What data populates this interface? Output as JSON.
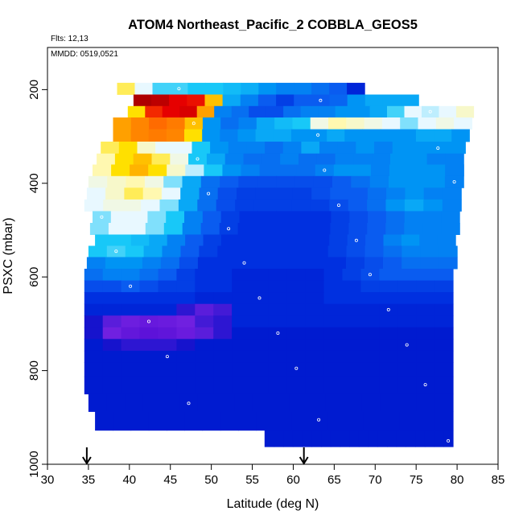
{
  "chart_data": {
    "type": "heatmap",
    "title": "ATOM4 Northeast_Pacific_2 COBBLA_GEOS5",
    "annotations": [
      "Flts: 12,13",
      "MMDD: 0519,0521"
    ],
    "xlabel": "Latitude (deg N)",
    "ylabel": "PSXC (mbar)",
    "xlim": [
      30,
      85
    ],
    "ylim": [
      1000,
      110
    ],
    "x_ticks": [
      "30",
      "35",
      "40",
      "45",
      "50",
      "55",
      "60",
      "65",
      "70",
      "75",
      "80",
      "85"
    ],
    "y_ticks": [
      "200",
      "400",
      "600",
      "800",
      "1000"
    ],
    "markers": [
      {
        "latitude": 34.8,
        "label": "arrow"
      },
      {
        "latitude": 61.3,
        "label": "arrow"
      }
    ],
    "levels": [
      {
        "p": 198,
        "lat": [
          38.5,
          68.7
        ],
        "v": [
          0.5,
          0.3,
          0.22,
          0.22,
          0.2,
          0.2,
          0.18,
          0.16,
          0.12,
          0.1,
          0.1,
          0.08,
          0.06,
          0.02
        ]
      },
      {
        "p": 223,
        "lat": [
          40.5,
          75.3
        ],
        "v": [
          0.98,
          0.96,
          0.9,
          0.88,
          0.6,
          0.15,
          0.1,
          0.06,
          0.04,
          0.06,
          0.06,
          0.07,
          0.12,
          0.15,
          0.15,
          0.15
        ]
      },
      {
        "p": 247,
        "lat": [
          39.8,
          82.0
        ],
        "v": [
          0.55,
          0.85,
          0.9,
          0.92,
          0.65,
          0.1,
          0.08,
          0.05,
          0.05,
          0.08,
          0.1,
          0.1,
          0.12,
          0.12,
          0.15,
          0.22,
          0.3,
          0.28,
          0.3,
          0.4
        ]
      },
      {
        "p": 272,
        "lat": [
          38.0,
          81.8
        ],
        "v": [
          0.65,
          0.7,
          0.75,
          0.72,
          0.6,
          0.12,
          0.08,
          0.1,
          0.15,
          0.18,
          0.2,
          0.35,
          0.45,
          0.4,
          0.35,
          0.3,
          0.25,
          0.3,
          0.35,
          0.3
        ]
      },
      {
        "p": 297,
        "lat": [
          38.0,
          81.5
        ],
        "v": [
          0.65,
          0.7,
          0.72,
          0.7,
          0.55,
          0.12,
          0.1,
          0.12,
          0.15,
          0.15,
          0.12,
          0.12,
          0.15,
          0.12,
          0.12,
          0.12,
          0.12,
          0.15,
          0.15,
          0.12
        ]
      },
      {
        "p": 325,
        "lat": [
          36.5,
          81.0
        ],
        "v": [
          0.5,
          0.55,
          0.4,
          0.3,
          0.3,
          0.2,
          0.12,
          0.1,
          0.1,
          0.08,
          0.1,
          0.15,
          0.1,
          0.1,
          0.12,
          0.1,
          0.12,
          0.12,
          0.12,
          0.12
        ]
      },
      {
        "p": 348,
        "lat": [
          36.0,
          80.8
        ],
        "v": [
          0.45,
          0.55,
          0.6,
          0.5,
          0.35,
          0.2,
          0.15,
          0.1,
          0.08,
          0.08,
          0.1,
          0.08,
          0.08,
          0.1,
          0.1,
          0.1,
          0.12,
          0.12,
          0.1,
          0.1
        ]
      },
      {
        "p": 372,
        "lat": [
          35.5,
          80.8
        ],
        "v": [
          0.45,
          0.55,
          0.62,
          0.55,
          0.4,
          0.28,
          0.2,
          0.12,
          0.1,
          0.08,
          0.08,
          0.08,
          0.1,
          0.12,
          0.12,
          0.1,
          0.12,
          0.12,
          0.12,
          0.1
        ]
      },
      {
        "p": 397,
        "lat": [
          35.0,
          80.8
        ],
        "v": [
          0.35,
          0.4,
          0.45,
          0.35,
          0.25,
          0.15,
          0.08,
          0.06,
          0.05,
          0.05,
          0.05,
          0.05,
          0.05,
          0.06,
          0.08,
          0.1,
          0.12,
          0.12,
          0.12,
          0.1
        ]
      },
      {
        "p": 422,
        "lat": [
          34.8,
          80.5
        ],
        "v": [
          0.3,
          0.4,
          0.5,
          0.45,
          0.3,
          0.15,
          0.08,
          0.05,
          0.04,
          0.04,
          0.04,
          0.04,
          0.05,
          0.06,
          0.06,
          0.08,
          0.1,
          0.12,
          0.1,
          0.1
        ]
      },
      {
        "p": 447,
        "lat": [
          34.5,
          80.5
        ],
        "v": [
          0.3,
          0.35,
          0.35,
          0.3,
          0.25,
          0.15,
          0.08,
          0.05,
          0.04,
          0.04,
          0.04,
          0.04,
          0.04,
          0.05,
          0.06,
          0.08,
          0.12,
          0.15,
          0.12,
          0.1
        ]
      },
      {
        "p": 472,
        "lat": [
          35.5,
          80.3
        ],
        "v": [
          0.25,
          0.3,
          0.3,
          0.25,
          0.2,
          0.1,
          0.06,
          0.04,
          0.03,
          0.03,
          0.03,
          0.03,
          0.03,
          0.04,
          0.05,
          0.06,
          0.08,
          0.1,
          0.1,
          0.1
        ]
      },
      {
        "p": 497,
        "lat": [
          35.2,
          80.3
        ],
        "v": [
          0.25,
          0.3,
          0.3,
          0.25,
          0.2,
          0.1,
          0.06,
          0.04,
          0.03,
          0.03,
          0.03,
          0.03,
          0.03,
          0.04,
          0.05,
          0.06,
          0.08,
          0.1,
          0.1,
          0.1
        ]
      },
      {
        "p": 522,
        "lat": [
          35.8,
          79.8
        ],
        "v": [
          0.2,
          0.2,
          0.18,
          0.15,
          0.1,
          0.06,
          0.04,
          0.03,
          0.03,
          0.03,
          0.03,
          0.03,
          0.03,
          0.04,
          0.05,
          0.06,
          0.1,
          0.12,
          0.1,
          0.1
        ]
      },
      {
        "p": 545,
        "lat": [
          35.0,
          80.0
        ],
        "v": [
          0.2,
          0.22,
          0.2,
          0.15,
          0.1,
          0.06,
          0.04,
          0.03,
          0.03,
          0.03,
          0.03,
          0.03,
          0.03,
          0.04,
          0.05,
          0.06,
          0.08,
          0.1,
          0.1,
          0.1
        ]
      },
      {
        "p": 570,
        "lat": [
          34.8,
          80.0
        ],
        "v": [
          0.1,
          0.12,
          0.12,
          0.1,
          0.08,
          0.05,
          0.03,
          0.03,
          0.03,
          0.03,
          0.03,
          0.03,
          0.03,
          0.03,
          0.04,
          0.05,
          0.06,
          0.08,
          0.08,
          0.08
        ]
      },
      {
        "p": 595,
        "lat": [
          34.5,
          79.5
        ],
        "v": [
          0.08,
          0.1,
          0.1,
          0.08,
          0.06,
          0.04,
          0.03,
          0.03,
          0.02,
          0.02,
          0.02,
          0.02,
          0.02,
          0.03,
          0.04,
          0.05,
          0.06,
          0.06,
          0.06,
          0.06
        ]
      },
      {
        "p": 620,
        "lat": [
          34.5,
          79.5
        ],
        "v": [
          0.05,
          0.05,
          0.06,
          0.05,
          0.04,
          0.04,
          0.03,
          0.03,
          0.02,
          0.02,
          0.02,
          0.02,
          0.02,
          0.03,
          0.03,
          0.04,
          0.04,
          0.04,
          0.04,
          0.04
        ]
      },
      {
        "p": 645,
        "lat": [
          34.5,
          79.5
        ],
        "v": [
          0.03,
          0.03,
          0.03,
          0.03,
          0.03,
          0.03,
          0.02,
          0.02,
          0.02,
          0.02,
          0.02,
          0.02,
          0.02,
          0.03,
          0.03,
          0.03,
          0.03,
          0.03,
          0.03,
          0.03
        ]
      },
      {
        "p": 670,
        "lat": [
          34.5,
          79.5
        ],
        "v": [
          0.02,
          0.02,
          0.02,
          0.02,
          0.02,
          -0.1,
          -0.2,
          -0.15,
          0.02,
          0.02,
          0.02,
          0.02,
          0.02,
          0.02,
          0.02,
          0.02,
          0.02,
          0.02,
          0.02,
          0.02
        ]
      },
      {
        "p": 695,
        "lat": [
          34.5,
          79.5
        ],
        "v": [
          -0.05,
          -0.2,
          -0.3,
          -0.4,
          -0.35,
          -0.25,
          -0.15,
          -0.1,
          0.02,
          0.02,
          0.02,
          0.02,
          0.02,
          0.02,
          0.02,
          0.02,
          0.02,
          0.02,
          0.02,
          0.02
        ]
      },
      {
        "p": 720,
        "lat": [
          34.5,
          79.5
        ],
        "v": [
          -0.05,
          -0.25,
          -0.45,
          -0.55,
          -0.5,
          -0.35,
          -0.2,
          -0.1,
          0.01,
          0.01,
          0.01,
          0.01,
          0.01,
          0.01,
          0.01,
          0.01,
          0.01,
          0.01,
          0.01,
          0.01
        ]
      },
      {
        "p": 745,
        "lat": [
          34.5,
          79.5
        ],
        "v": [
          0.01,
          -0.05,
          -0.1,
          -0.1,
          -0.1,
          -0.05,
          0.01,
          0.01,
          0.01,
          0.01,
          0.01,
          0.01,
          0.01,
          0.01,
          0.01,
          0.01,
          0.01,
          0.01,
          0.01,
          0.01
        ]
      },
      {
        "p": 770,
        "lat": [
          34.5,
          79.5
        ],
        "v": [
          0.01,
          0.01,
          0.01,
          0.01,
          0.01,
          0.01,
          0.01,
          0.01,
          0.01,
          0.01,
          0.01,
          0.01,
          0.01,
          0.01,
          0.01,
          0.01,
          0.01,
          0.01,
          0.01,
          0.01
        ]
      },
      {
        "p": 795,
        "lat": [
          34.5,
          79.5
        ],
        "v": [
          0.01,
          0.01,
          0.01,
          0.01,
          0.01,
          0.01,
          0.01,
          0.01,
          0.01,
          0.01,
          0.01,
          0.01,
          0.01,
          0.01,
          0.01,
          0.01,
          0.01,
          0.01,
          0.01,
          0.01
        ]
      },
      {
        "p": 830,
        "lat": [
          34.5,
          79.5
        ],
        "v": [
          0.01,
          0.01,
          0.01,
          0.01,
          0.01,
          0.01,
          0.01,
          0.01,
          0.01,
          0.01,
          0.01,
          0.01,
          0.01,
          0.01,
          0.01,
          0.01,
          0.01,
          0.01,
          0.01,
          0.01
        ]
      },
      {
        "p": 870,
        "lat": [
          35.0,
          79.5
        ],
        "v": [
          0.01,
          0.01,
          0.01,
          0.01,
          0.01,
          0.01,
          0.01,
          0.01,
          0.01,
          0.01,
          0.01,
          0.01,
          0.01,
          0.01,
          0.01,
          0.01,
          0.01,
          0.01,
          0.01,
          0.01
        ]
      },
      {
        "p": 905,
        "lat": [
          35.8,
          79.5
        ],
        "v": [
          0.01,
          0.01,
          0.01,
          0.01,
          0.01,
          0.01,
          0.01,
          0.01,
          0.01,
          0.01,
          0.01,
          0.01,
          0.01,
          0.01,
          0.01,
          0.01,
          0.01,
          0.01,
          0.01,
          0.01
        ]
      },
      {
        "p": 950,
        "lat": [
          56.5,
          79.5
        ],
        "v": [
          0.01,
          0.01,
          0.01,
          0.01,
          0.01,
          0.01,
          0.01,
          0.01,
          0.01,
          0.01,
          0.01,
          0.01,
          0.01,
          0.01,
          0.01,
          0.01,
          0.01,
          0.01,
          0.01,
          0.01
        ]
      }
    ],
    "colors": {
      "scale": [
        "#5a10d8",
        "#7020e0",
        "#0010c8",
        "#0030e0",
        "#0a5cf0",
        "#0094f4",
        "#18c8f8",
        "#e8f8ff",
        "#fff8b0",
        "#ffe000",
        "#ffa000",
        "#ff5000",
        "#e60000",
        "#a00000"
      ],
      "marker": "#ffffff"
    }
  }
}
